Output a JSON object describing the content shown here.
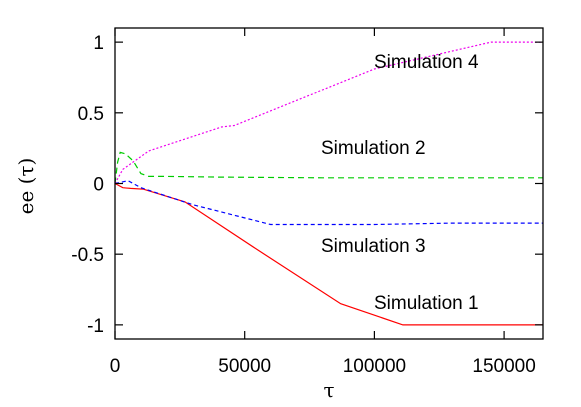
{
  "chart_data": {
    "type": "line",
    "xlabel": "τ",
    "ylabel": "ee (τ)",
    "xlim": [
      0,
      165000
    ],
    "ylim": [
      -1.1,
      1.1
    ],
    "x_ticks": [
      0,
      50000,
      100000,
      150000
    ],
    "x_tick_labels": [
      "0",
      "50000",
      "100000",
      "150000"
    ],
    "y_ticks": [
      1,
      0.5,
      0,
      -0.5,
      -1
    ],
    "y_tick_labels": [
      "1",
      "0.5",
      "0",
      "-0.5",
      "-1"
    ],
    "grid": false,
    "legend": "none",
    "series": [
      {
        "name": "Simulation 1",
        "color": "#ff0000",
        "dash": "solid",
        "x": [
          0,
          1000,
          3000,
          6000,
          11000,
          27000,
          55000,
          87000,
          111000,
          125000,
          140000,
          165000
        ],
        "y": [
          0,
          -0.01,
          -0.03,
          -0.035,
          -0.04,
          -0.13,
          -0.47,
          -0.85,
          -1.0,
          -1.0,
          -1.0,
          -1.0
        ]
      },
      {
        "name": "Simulation 2",
        "color": "#00cc00",
        "dash": "6,4",
        "x": [
          0,
          1000,
          2000,
          4000,
          7000,
          10000,
          13000,
          20000,
          40000,
          80000,
          120000,
          165000
        ],
        "y": [
          0,
          0.15,
          0.22,
          0.21,
          0.16,
          0.07,
          0.05,
          0.05,
          0.045,
          0.04,
          0.04,
          0.04
        ]
      },
      {
        "name": "Simulation 3",
        "color": "#0000ff",
        "dash": "4,3",
        "x": [
          0,
          5000,
          10000,
          30000,
          60000,
          100000,
          130000,
          165000
        ],
        "y": [
          0,
          0.02,
          -0.03,
          -0.15,
          -0.29,
          -0.29,
          -0.28,
          -0.28
        ]
      },
      {
        "name": "Simulation 4",
        "color": "#ee00ee",
        "dash": "2,2",
        "x": [
          0,
          3000,
          13000,
          41000,
          46000,
          100000,
          145000,
          165000
        ],
        "y": [
          0,
          0.1,
          0.23,
          0.4,
          0.41,
          0.81,
          1.0,
          1.0
        ]
      }
    ],
    "annotations": [
      "Simulation 4",
      "Simulation 2",
      "Simulation 3",
      "Simulation 1"
    ]
  }
}
